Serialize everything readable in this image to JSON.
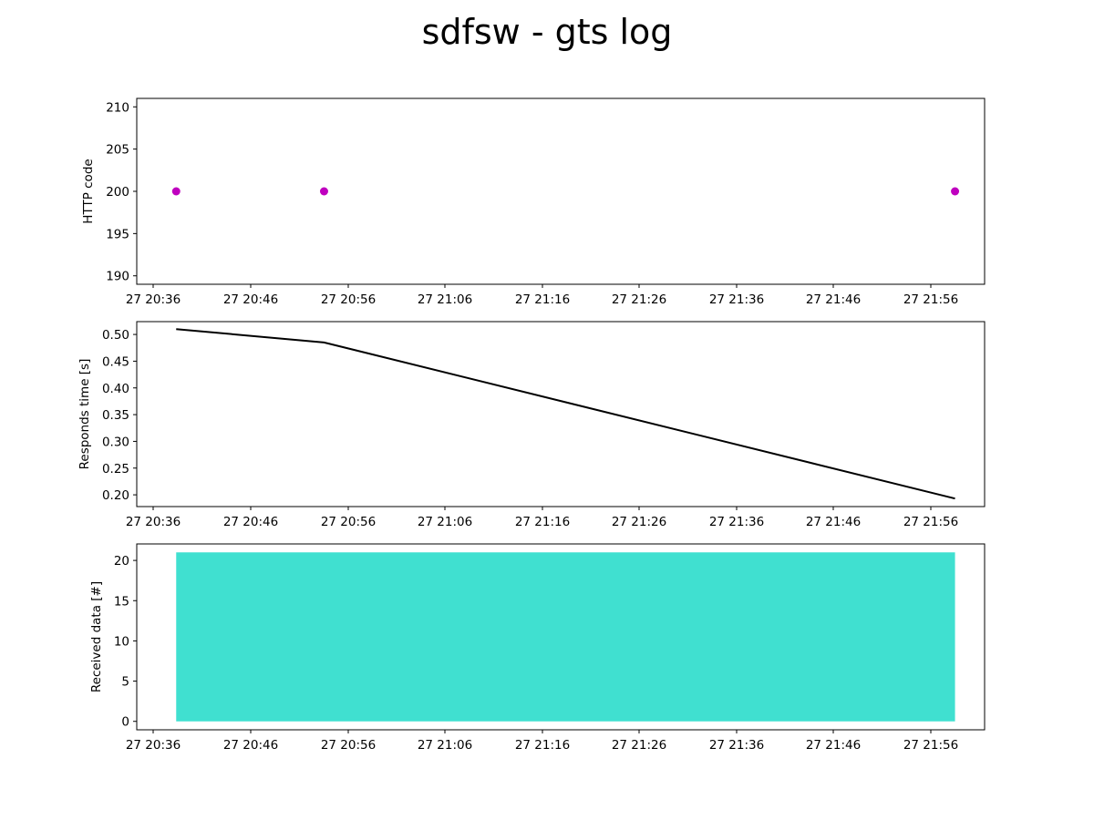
{
  "title": "sdfsw - gts log",
  "x_tick_labels": [
    "27 20:36",
    "27 20:46",
    "27 20:56",
    "27 21:06",
    "27 21:16",
    "27 21:26",
    "27 21:36",
    "27 21:46",
    "27 21:56"
  ],
  "colors": {
    "points": "#bf00bf",
    "line": "#000000",
    "area": "#40e0d0"
  },
  "chart_data": [
    {
      "type": "scatter",
      "ylabel": "HTTP code",
      "x": [
        "20:40",
        "20:55",
        "21:59"
      ],
      "values": [
        200,
        200,
        200
      ],
      "y_ticks": [
        "190",
        "195",
        "200",
        "205",
        "210"
      ],
      "ylim": [
        189,
        211
      ],
      "xlim": [
        "20:36",
        "22:02"
      ],
      "grid": false
    },
    {
      "type": "line",
      "ylabel": "Responds time [s]",
      "x": [
        "20:40",
        "20:55",
        "21:59"
      ],
      "values": [
        0.51,
        0.485,
        0.193
      ],
      "y_ticks": [
        "0.20",
        "0.25",
        "0.30",
        "0.35",
        "0.40",
        "0.45",
        "0.50"
      ],
      "ylim": [
        0.178,
        0.524
      ],
      "xlim": [
        "20:36",
        "22:02"
      ],
      "grid": false
    },
    {
      "type": "area",
      "ylabel": "Received data [#]",
      "x": [
        "20:40",
        "20:55",
        "21:59"
      ],
      "values": [
        21,
        21,
        21
      ],
      "y_ticks": [
        "0",
        "5",
        "10",
        "15",
        "20"
      ],
      "ylim": [
        -1.05,
        22.05
      ],
      "xlim": [
        "20:36",
        "22:02"
      ],
      "grid": false
    }
  ]
}
